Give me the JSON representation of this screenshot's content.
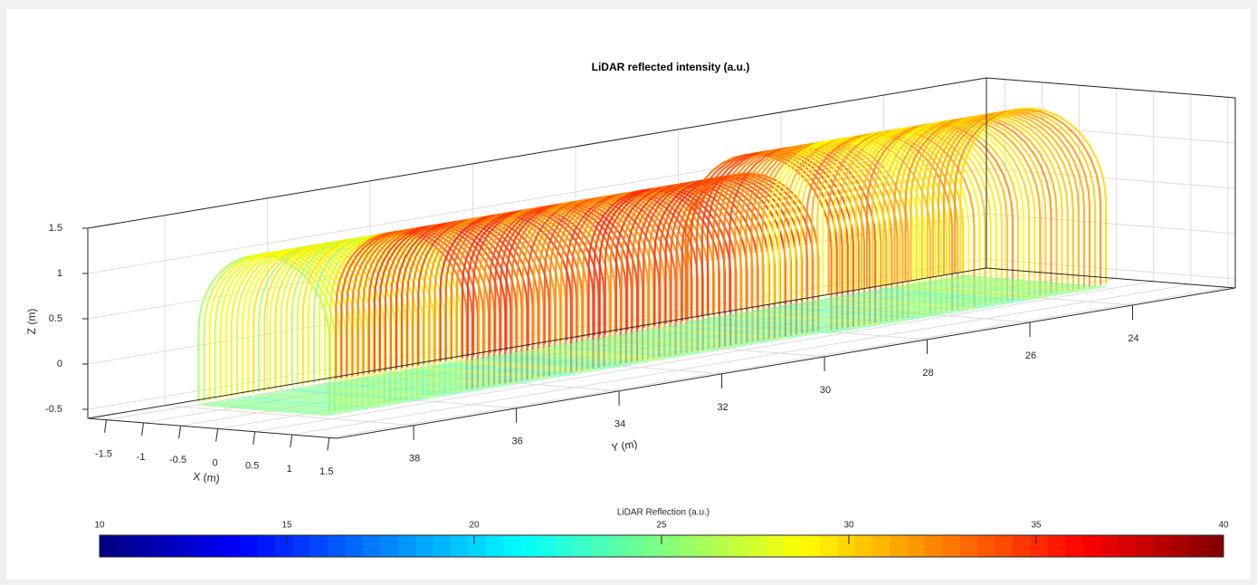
{
  "chart_data": {
    "type": "scatter3d",
    "title": "LiDAR reflected intensity (a.u.)",
    "xlabel": "X (m)",
    "ylabel": "Y (m)",
    "zlabel": "Z (m)",
    "xlim": [
      -1.75,
      1.6
    ],
    "ylim": [
      22,
      39.5
    ],
    "zlim": [
      -0.6,
      1.5
    ],
    "xticks": [
      -1.5,
      -1,
      -0.5,
      0,
      0.5,
      1,
      1.5
    ],
    "yticks": [
      24,
      26,
      28,
      30,
      32,
      34,
      36,
      38
    ],
    "zticks": [
      -0.5,
      0,
      0.5,
      1,
      1.5
    ],
    "grid": true,
    "colorbar": {
      "label": "LiDAR Reflection (a.u.)",
      "clim": [
        10,
        40
      ],
      "ticks": [
        10,
        15,
        20,
        25,
        30,
        35,
        40
      ],
      "colormap": "jet"
    }
  }
}
